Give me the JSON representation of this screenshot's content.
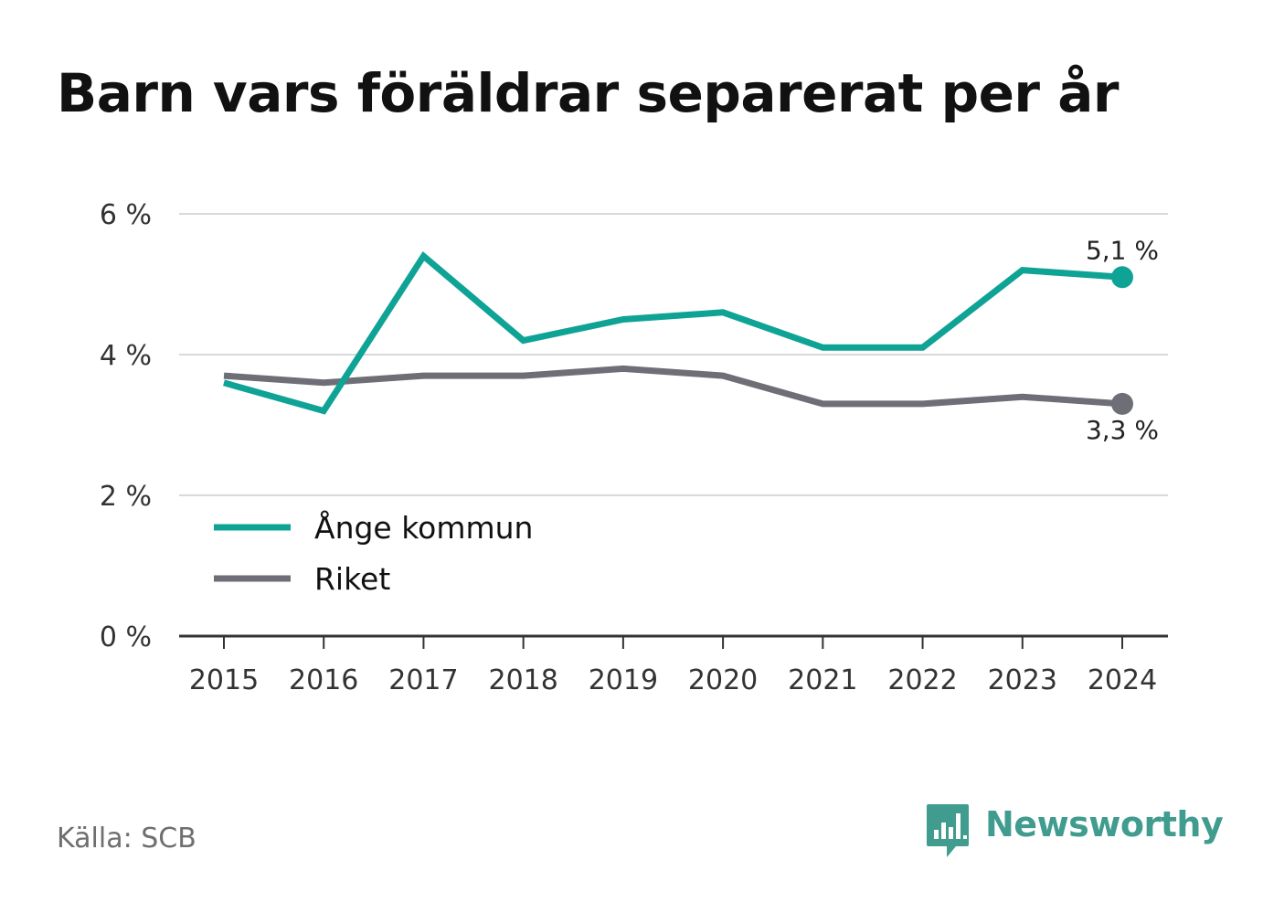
{
  "title": "Barn vars föräldrar separerat per år",
  "source": "Källa: SCB",
  "brand": {
    "name": "Newsworthy",
    "icon": "newsworthy-logo-icon",
    "color": "#3f9c8e"
  },
  "chart_data": {
    "type": "line",
    "x": [
      "2015",
      "2016",
      "2017",
      "2018",
      "2019",
      "2020",
      "2021",
      "2022",
      "2023",
      "2024"
    ],
    "series": [
      {
        "name": "Ånge kommun",
        "color": "#0fa396",
        "values": [
          3.6,
          3.2,
          5.4,
          4.2,
          4.5,
          4.6,
          4.1,
          4.1,
          5.2,
          5.1
        ],
        "end_label": "5,1 %"
      },
      {
        "name": "Riket",
        "color": "#6e6e76",
        "values": [
          3.7,
          3.6,
          3.7,
          3.7,
          3.8,
          3.7,
          3.3,
          3.3,
          3.4,
          3.3
        ],
        "end_label": "3,3 %"
      }
    ],
    "ylim": [
      0,
      6
    ],
    "yticks": [
      {
        "value": 0,
        "label": "0 %"
      },
      {
        "value": 2,
        "label": "2 %"
      },
      {
        "value": 4,
        "label": "4 %"
      },
      {
        "value": 6,
        "label": "6 %"
      }
    ],
    "grid": true,
    "legend_position": "bottom-left"
  }
}
